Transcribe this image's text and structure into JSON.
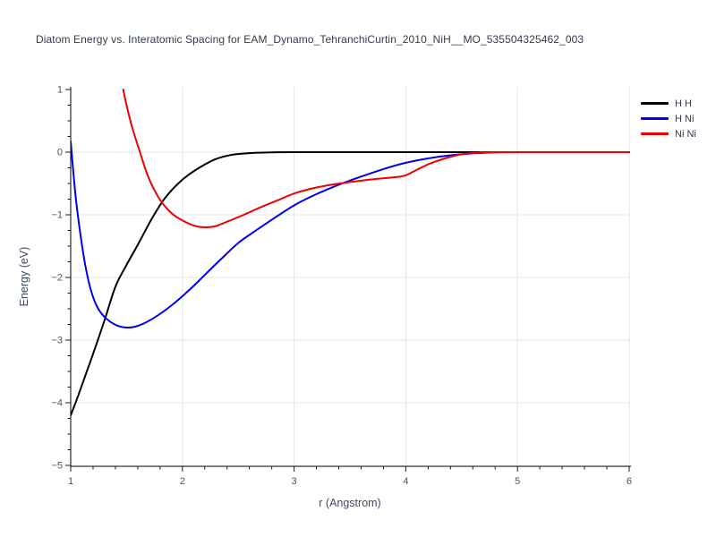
{
  "styles": {
    "background": "#ffffff",
    "grid_color": "#e5e5e5",
    "axis_color": "#000000",
    "tick_color": "#1a1a1a",
    "tick_label_color": "#47536a",
    "title_color": "#313c4e",
    "axis_label_color": "#3f4a5f"
  },
  "chart_data": {
    "type": "line",
    "title": "Diatom Energy vs. Interatomic Spacing for EAM_Dynamo_TehranchiCurtin_2010_NiH__MO_535504325462_003",
    "xlabel": "r (Angstrom)",
    "ylabel": "Energy (eV)",
    "xlim": [
      1,
      6
    ],
    "ylim": [
      -5,
      1
    ],
    "grid": true,
    "legend_position": "top-right",
    "x_ticks": {
      "major": [
        1,
        2,
        3,
        4,
        5,
        6
      ],
      "labels": [
        "1",
        "2",
        "3",
        "4",
        "5",
        "6"
      ],
      "minor_step": 0.2
    },
    "y_ticks": {
      "major": [
        1,
        0,
        -1,
        -2,
        -3,
        -4,
        -5
      ],
      "labels": [
        "1",
        "0",
        "−1",
        "−2",
        "−3",
        "−4",
        "−5"
      ],
      "minor_step": 0.25
    },
    "series": [
      {
        "name": "H H",
        "color": "#000000",
        "points": [
          [
            1.0,
            -4.2
          ],
          [
            1.05,
            -3.97
          ],
          [
            1.1,
            -3.72
          ],
          [
            1.2,
            -3.22
          ],
          [
            1.3,
            -2.7
          ],
          [
            1.4,
            -2.15
          ],
          [
            1.5,
            -1.8
          ],
          [
            1.6,
            -1.48
          ],
          [
            1.73,
            -1.05
          ],
          [
            1.85,
            -0.72
          ],
          [
            2.0,
            -0.44
          ],
          [
            2.15,
            -0.25
          ],
          [
            2.3,
            -0.11
          ],
          [
            2.45,
            -0.04
          ],
          [
            2.6,
            -0.015
          ],
          [
            2.8,
            -0.003
          ],
          [
            3.0,
            0.0
          ],
          [
            4.0,
            0.0
          ],
          [
            5.0,
            0.0
          ],
          [
            6.0,
            0.0
          ]
        ]
      },
      {
        "name": "H Ni",
        "color": "#0000f0",
        "points": [
          [
            1.0,
            0.17
          ],
          [
            1.02,
            -0.25
          ],
          [
            1.05,
            -0.8
          ],
          [
            1.09,
            -1.35
          ],
          [
            1.13,
            -1.8
          ],
          [
            1.18,
            -2.2
          ],
          [
            1.24,
            -2.48
          ],
          [
            1.32,
            -2.66
          ],
          [
            1.42,
            -2.77
          ],
          [
            1.52,
            -2.8
          ],
          [
            1.62,
            -2.76
          ],
          [
            1.75,
            -2.64
          ],
          [
            1.9,
            -2.45
          ],
          [
            2.05,
            -2.22
          ],
          [
            2.2,
            -1.96
          ],
          [
            2.35,
            -1.7
          ],
          [
            2.5,
            -1.45
          ],
          [
            2.65,
            -1.26
          ],
          [
            2.8,
            -1.08
          ],
          [
            3.0,
            -0.85
          ],
          [
            3.2,
            -0.67
          ],
          [
            3.4,
            -0.52
          ],
          [
            3.6,
            -0.39
          ],
          [
            3.8,
            -0.27
          ],
          [
            4.0,
            -0.17
          ],
          [
            4.2,
            -0.1
          ],
          [
            4.4,
            -0.05
          ],
          [
            4.6,
            -0.02
          ],
          [
            4.8,
            -0.005
          ],
          [
            5.0,
            0.0
          ],
          [
            6.0,
            0.0
          ]
        ]
      },
      {
        "name": "Ni Ni",
        "color": "#f00000",
        "points": [
          [
            1.47,
            1.0
          ],
          [
            1.5,
            0.75
          ],
          [
            1.55,
            0.4
          ],
          [
            1.62,
            0.0
          ],
          [
            1.7,
            -0.42
          ],
          [
            1.8,
            -0.76
          ],
          [
            1.9,
            -0.97
          ],
          [
            2.0,
            -1.09
          ],
          [
            2.1,
            -1.17
          ],
          [
            2.2,
            -1.2
          ],
          [
            2.3,
            -1.18
          ],
          [
            2.4,
            -1.11
          ],
          [
            2.55,
            -1.0
          ],
          [
            2.7,
            -0.88
          ],
          [
            2.85,
            -0.77
          ],
          [
            3.0,
            -0.66
          ],
          [
            3.15,
            -0.585
          ],
          [
            3.3,
            -0.53
          ],
          [
            3.45,
            -0.49
          ],
          [
            3.6,
            -0.455
          ],
          [
            3.75,
            -0.425
          ],
          [
            3.9,
            -0.4
          ],
          [
            4.0,
            -0.37
          ],
          [
            4.1,
            -0.28
          ],
          [
            4.22,
            -0.18
          ],
          [
            4.35,
            -0.1
          ],
          [
            4.5,
            -0.035
          ],
          [
            4.65,
            -0.008
          ],
          [
            4.8,
            0.0
          ],
          [
            6.0,
            0.0
          ]
        ]
      }
    ]
  }
}
